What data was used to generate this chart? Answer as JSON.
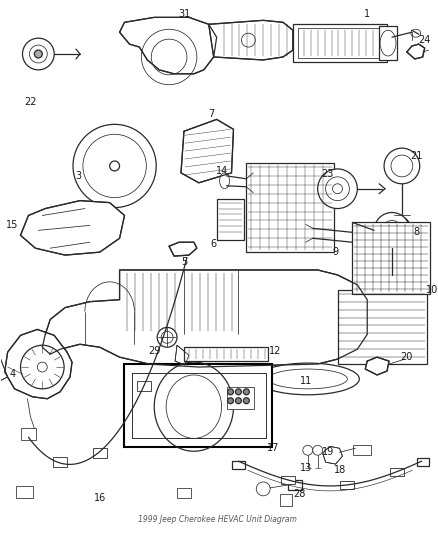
{
  "title": "1999 Jeep Cherokee HEVAC Unit Diagram",
  "background_color": "#ffffff",
  "line_color": "#2a2a2a",
  "label_color": "#1a1a1a",
  "fig_width": 4.38,
  "fig_height": 5.33,
  "dpi": 100
}
